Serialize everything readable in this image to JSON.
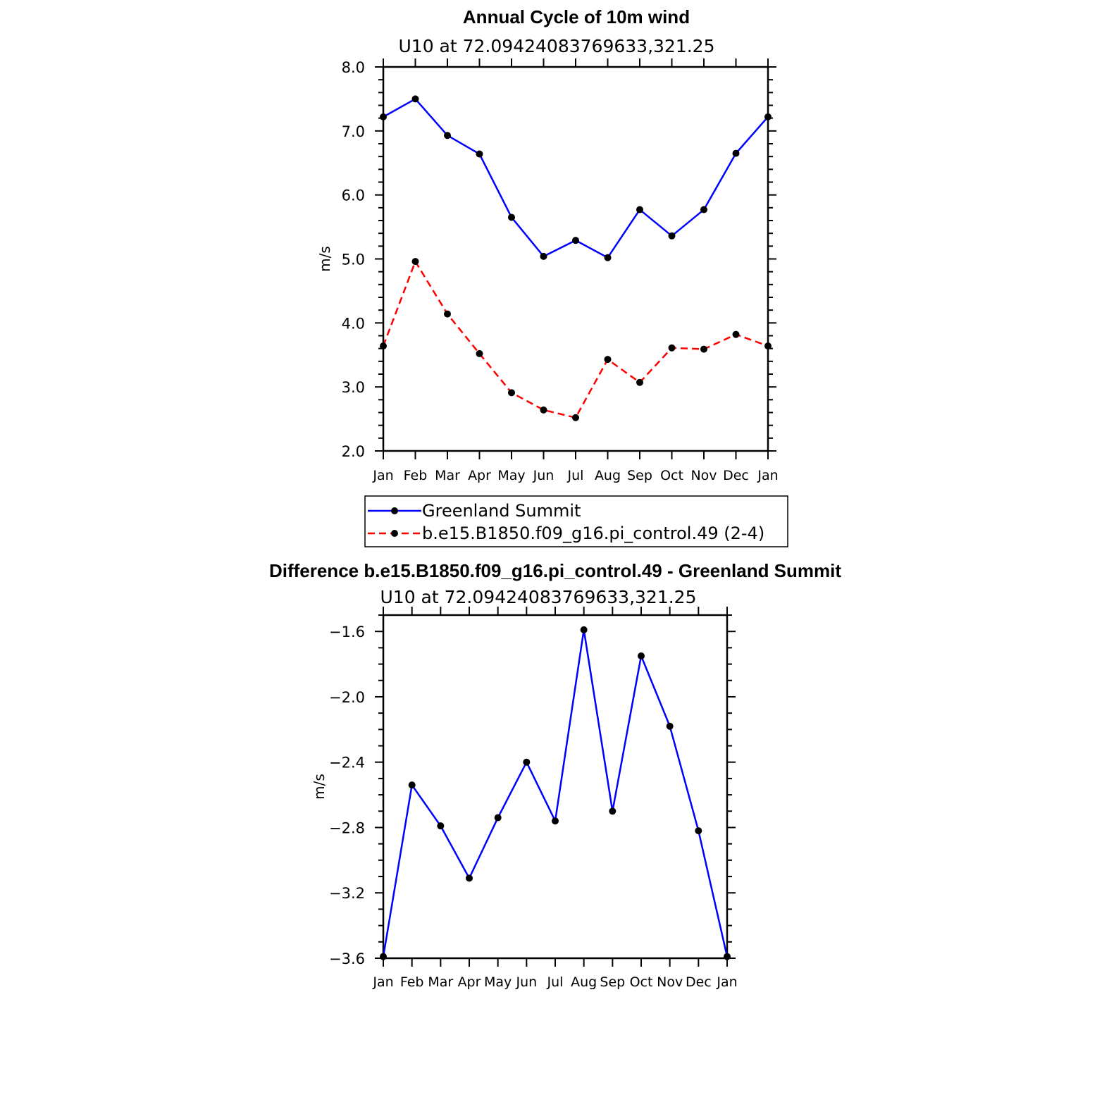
{
  "colors": {
    "blue": "#0000ff",
    "red": "#ff0000",
    "marker": "#000000"
  },
  "chart_data": [
    {
      "type": "line",
      "title": "Annual Cycle of 10m wind",
      "subtitle": "U10 at 72.09424083769633,321.25",
      "ylabel": "m/s",
      "xlabel": "",
      "ylim": [
        2.0,
        8.0
      ],
      "yticks": [
        "2.0",
        "3.0",
        "4.0",
        "5.0",
        "6.0",
        "7.0",
        "8.0"
      ],
      "categories": [
        "Jan",
        "Feb",
        "Mar",
        "Apr",
        "May",
        "Jun",
        "Jul",
        "Aug",
        "Sep",
        "Oct",
        "Nov",
        "Dec",
        "Jan"
      ],
      "grid": false,
      "legend_position": "bottom",
      "series": [
        {
          "name": "Greenland Summit",
          "color": "#0000ff",
          "dash": "solid",
          "values": [
            7.22,
            7.5,
            6.93,
            6.64,
            5.65,
            5.04,
            5.29,
            5.02,
            5.77,
            5.36,
            5.77,
            6.65,
            7.22
          ]
        },
        {
          "name": "b.e15.B1850.f09_g16.pi_control.49 (2-4)",
          "color": "#ff0000",
          "dash": "dashed",
          "values": [
            3.64,
            4.96,
            4.14,
            3.52,
            2.91,
            2.64,
            2.52,
            3.43,
            3.07,
            3.61,
            3.59,
            3.82,
            3.64
          ]
        }
      ]
    },
    {
      "type": "line",
      "title": "Difference b.e15.B1850.f09_g16.pi_control.49 - Greenland Summit",
      "subtitle": "U10 at 72.09424083769633,321.25",
      "ylabel": "m/s",
      "xlabel": "",
      "ylim": [
        -3.6,
        -1.5
      ],
      "yticks": [
        "-3.6",
        "-3.2",
        "-2.8",
        "-2.4",
        "-2.0",
        "-1.6"
      ],
      "categories": [
        "Jan",
        "Feb",
        "Mar",
        "Apr",
        "May",
        "Jun",
        "Jul",
        "Aug",
        "Sep",
        "Oct",
        "Nov",
        "Dec",
        "Jan"
      ],
      "grid": false,
      "legend_position": "none",
      "series": [
        {
          "color": "#0000ff",
          "dash": "solid",
          "values": [
            -3.59,
            -2.54,
            -2.79,
            -3.11,
            -2.74,
            -2.4,
            -2.76,
            -1.59,
            -2.7,
            -1.75,
            -2.18,
            -2.82,
            -3.59
          ]
        }
      ]
    }
  ]
}
